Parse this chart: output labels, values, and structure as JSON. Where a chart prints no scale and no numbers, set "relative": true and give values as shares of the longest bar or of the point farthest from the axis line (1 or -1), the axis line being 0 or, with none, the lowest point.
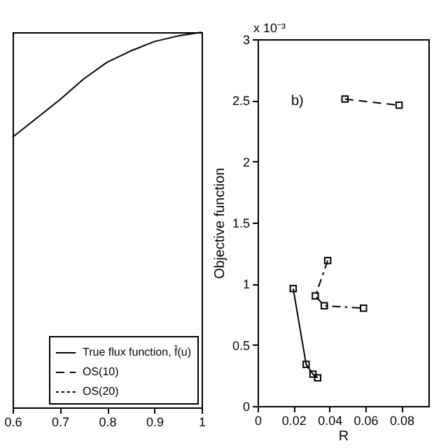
{
  "chart_data": [
    {
      "type": "line",
      "relative": true,
      "legend": "bottom right",
      "xlim": [
        0.6,
        1
      ],
      "xticks": [
        0.6,
        0.7,
        0.8,
        0.9,
        1
      ],
      "x": [
        0.6,
        0.65,
        0.7,
        0.75,
        0.8,
        0.85,
        0.9,
        0.95,
        1
      ],
      "series": [
        {
          "name": "True flux function, f̂(u)",
          "color": "#000000",
          "line_style": "solid",
          "values": [
            0.72,
            0.77,
            0.82,
            0.875,
            0.92,
            0.95,
            0.975,
            0.99,
            1
          ]
        },
        {
          "name": "OS(10)",
          "color": "#000000",
          "line_style": "dashed",
          "values": [
            null,
            null,
            null,
            null,
            null,
            null,
            null,
            null,
            null
          ]
        },
        {
          "name": "OS(20)",
          "color": "#000000",
          "line_style": "dotted",
          "values": [
            null,
            null,
            null,
            null,
            null,
            null,
            null,
            null,
            null
          ]
        }
      ]
    },
    {
      "type": "line",
      "marker": "square",
      "xlabel": "R",
      "ylabel": "Objective function",
      "xlim": [
        0,
        0.095
      ],
      "xticks": [
        0,
        0.02,
        0.04,
        0.06,
        0.08
      ],
      "ylim": [
        0,
        3
      ],
      "yticks": [
        0,
        0.5,
        1,
        1.5,
        2,
        2.5,
        3
      ],
      "annotations": [
        "b)",
        "x 10⁻³"
      ],
      "series": [
        {
          "color": "#000000",
          "line_style": "solid",
          "x": [
            0.0198,
            0.027,
            0.0308,
            0.0334
          ],
          "values": [
            0.96,
            0.34,
            0.26,
            0.23
          ]
        },
        {
          "color": "#000000",
          "line_style": "dashdot",
          "x": [
            0.039,
            0.0321,
            0.0371,
            0.0589
          ],
          "values": [
            1.19,
            0.9,
            0.82,
            0.8
          ]
        },
        {
          "color": "#000000",
          "line_style": "dashed",
          "x": [
            0.0486,
            0.0787
          ],
          "values": [
            2.51,
            2.46
          ]
        }
      ]
    }
  ]
}
